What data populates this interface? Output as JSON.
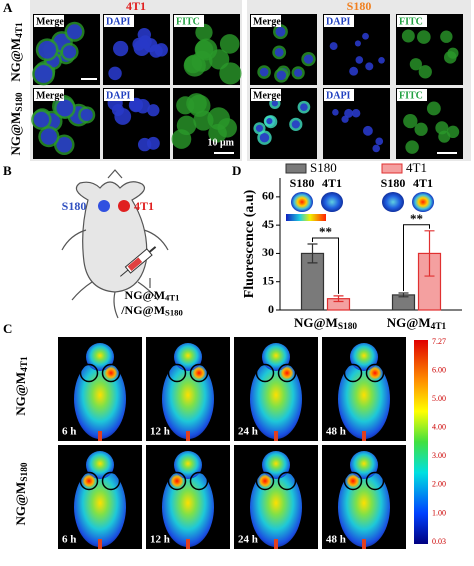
{
  "panel_a": {
    "letter": "A",
    "columns": [
      "4T1",
      "S180"
    ],
    "rows": [
      "NG@M4T1",
      "NG@MS180"
    ],
    "tile_labels": [
      "Merge",
      "DAPI",
      "FITC"
    ],
    "scale_bar": "10 μm"
  },
  "panel_b": {
    "letter": "B",
    "tumor_labels": [
      "S180",
      "4T1"
    ],
    "injection": [
      "NG@M4T1",
      "/NG@MS180"
    ]
  },
  "panel_c": {
    "letter": "C",
    "rows": [
      "NG@M4T1",
      "NG@MS180"
    ],
    "times": [
      "6 h",
      "12 h",
      "24 h",
      "48 h"
    ],
    "colorbar_ticks": [
      "7.27",
      "6.00",
      "5.00",
      "4.00",
      "3.00",
      "2.00",
      "1.00",
      "0.03"
    ]
  },
  "panel_d": {
    "letter": "D"
  },
  "chart_data": {
    "type": "bar",
    "y_label": "Fluorescence (a.u)",
    "categories": [
      "NG@MS180",
      "NG@M4T1"
    ],
    "series": [
      {
        "name": "S180",
        "color": "#7a7a7a",
        "values": [
          30,
          8
        ],
        "errors": [
          5,
          1
        ]
      },
      {
        "name": "4T1",
        "color": "#f4a0a0",
        "values": [
          6,
          30
        ],
        "errors": [
          1.5,
          12
        ]
      }
    ],
    "ylim": [
      0,
      70
    ],
    "yticks": [
      0,
      15,
      30,
      45,
      60
    ],
    "annotations": [
      "**",
      "**"
    ],
    "inset_labels": [
      "S180",
      "4T1"
    ],
    "legend": "top"
  }
}
